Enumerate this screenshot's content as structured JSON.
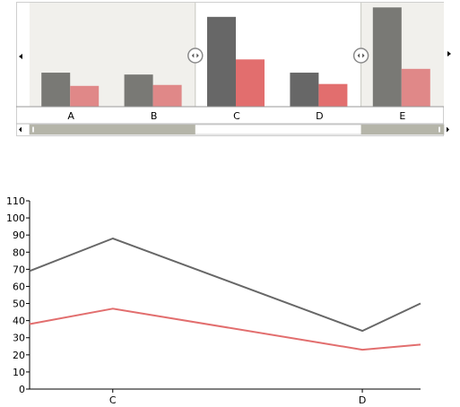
{
  "colors": {
    "series_dark": "#676767",
    "series_dark_shaded": "#797975",
    "series_red": "#e26e6e",
    "series_red_shaded": "#e08888",
    "outside_range": "#f1f0ec",
    "scrollbar_track": "#b5b5a9",
    "axis": "#000000"
  },
  "navigator": {
    "left_arrow_icon": "arrow-left-icon",
    "right_arrow_icon": "arrow-right-icon",
    "handle_icon": "range-handle-icon",
    "selection_start_fraction": 0.4,
    "selection_end_fraction": 0.8
  },
  "chart_data": [
    {
      "type": "bar",
      "categories": [
        "A",
        "B",
        "C",
        "D",
        "E"
      ],
      "series": [
        {
          "values": [
            36,
            34,
            95,
            36,
            105
          ]
        },
        {
          "values": [
            22,
            23,
            50,
            24,
            40
          ]
        }
      ],
      "ylim": [
        0,
        110
      ],
      "grid": false,
      "legend": "none"
    },
    {
      "type": "line",
      "x": [
        2.5,
        3.0,
        4.5,
        4.85
      ],
      "categories": [
        "C",
        "D"
      ],
      "category_positions": [
        3,
        4.5
      ],
      "series": [
        {
          "values": [
            69,
            88,
            34,
            50
          ]
        },
        {
          "values": [
            38,
            47,
            23,
            26
          ]
        }
      ],
      "xlim": [
        2.5,
        4.85
      ],
      "ylim": [
        0,
        110
      ],
      "yticks": [
        0,
        10,
        20,
        30,
        40,
        50,
        60,
        70,
        80,
        90,
        100,
        110
      ],
      "grid": false,
      "legend": "none"
    }
  ]
}
